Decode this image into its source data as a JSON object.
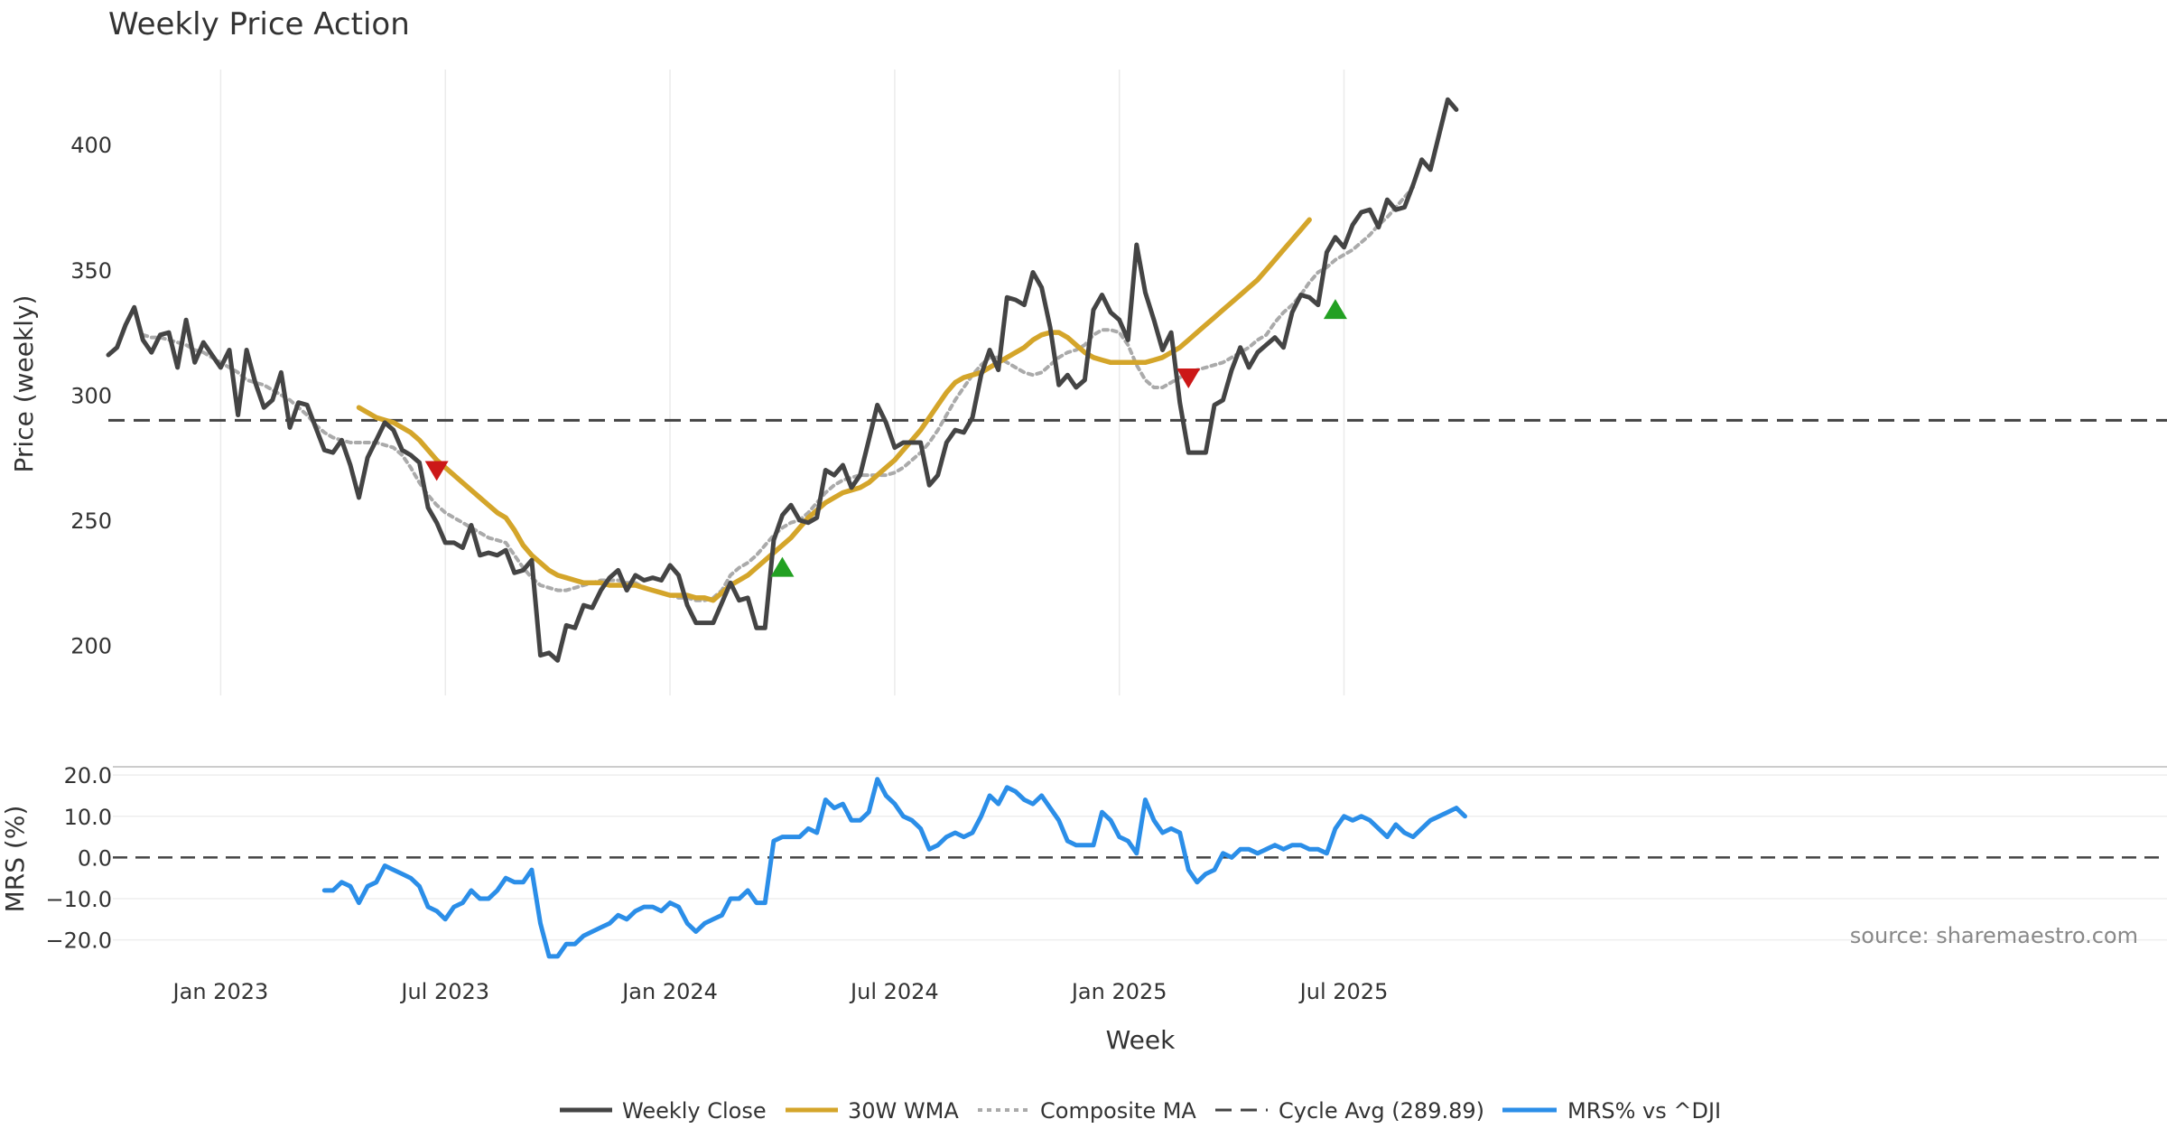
{
  "chart_data": {
    "type": "line",
    "title": "Weekly Price Action",
    "xlabel": "Week",
    "price_panel": {
      "ylabel": "Price (weekly)",
      "ylim": [
        180,
        430
      ],
      "yticks": [
        200,
        250,
        300,
        350,
        400
      ],
      "cycle_avg": 289.89
    },
    "mrs_panel": {
      "ylabel": "MRS (%)",
      "ylim": [
        -26,
        22
      ],
      "yticks": [
        20,
        10,
        0,
        -10,
        -20
      ],
      "ytick_labels": [
        "20.0",
        "10.0",
        "0.0",
        "−10.0",
        "−20.0"
      ]
    },
    "x_ticks": [
      "Jan 2023",
      "Jul 2023",
      "Jan 2024",
      "Jul 2024",
      "Jan 2025",
      "Jul 2025"
    ],
    "x_tick_weeks": [
      13,
      39,
      65,
      91,
      117,
      143
    ],
    "series": [
      {
        "name": "Weekly Close",
        "color": "#444444",
        "start_week": 0,
        "values": [
          316,
          319,
          328,
          335,
          322,
          317,
          324,
          325,
          311,
          330,
          313,
          321,
          316,
          311,
          318,
          292,
          318,
          305,
          295,
          298,
          309,
          287,
          297,
          296,
          287,
          278,
          277,
          282,
          272,
          259,
          275,
          282,
          289,
          286,
          278,
          276,
          273,
          255,
          249,
          241,
          241,
          239,
          248,
          236,
          237,
          236,
          238,
          229,
          230,
          234,
          196,
          197,
          194,
          208,
          207,
          216,
          215,
          222,
          227,
          230,
          222,
          228,
          226,
          227,
          226,
          232,
          228,
          216,
          209,
          209,
          209,
          217,
          225,
          218,
          219,
          207,
          207,
          242,
          252,
          256,
          250,
          249,
          251,
          270,
          268,
          272,
          263,
          268,
          282,
          296,
          289,
          279,
          281,
          281,
          281,
          264,
          268,
          281,
          286,
          285,
          291,
          308,
          318,
          310,
          339,
          338,
          336,
          349,
          343,
          327,
          304,
          308,
          303,
          306,
          334,
          340,
          333,
          330,
          322,
          360,
          341,
          330,
          318,
          325,
          297,
          277,
          277,
          277,
          296,
          298,
          310,
          319,
          311,
          317,
          320,
          323,
          319,
          333,
          340,
          339,
          336,
          357,
          363,
          359,
          368,
          373,
          374,
          367,
          378,
          374,
          375,
          384,
          394,
          390,
          404,
          418,
          414
        ]
      },
      {
        "name": "30W WMA",
        "color": "#d4a52a",
        "start_week": 29,
        "values": [
          295,
          293,
          291,
          290,
          289,
          287,
          285,
          282,
          278,
          274,
          271,
          268,
          265,
          262,
          259,
          256,
          253,
          251,
          246,
          240,
          236,
          233,
          230,
          228,
          227,
          226,
          225,
          225,
          225,
          224,
          224,
          224,
          224,
          223,
          222,
          221,
          220,
          220,
          220,
          219,
          219,
          218,
          221,
          224,
          226,
          228,
          231,
          234,
          237,
          240,
          243,
          247,
          251,
          254,
          257,
          259,
          261,
          262,
          263,
          265,
          268,
          271,
          274,
          278,
          282,
          286,
          291,
          296,
          301,
          305,
          307,
          308,
          309,
          311,
          313,
          315,
          317,
          319,
          322,
          324,
          325,
          325,
          323,
          320,
          317,
          315,
          314,
          313,
          313,
          313,
          313,
          313,
          314,
          315,
          317,
          319,
          322,
          325,
          328,
          331,
          334,
          337,
          340,
          343,
          346,
          350,
          354,
          358,
          362,
          366,
          370
        ]
      },
      {
        "name": "Composite MA",
        "color": "#aaaaaa",
        "start_week": 4,
        "values": [
          324,
          323,
          323,
          322,
          321,
          320,
          318,
          317,
          315,
          313,
          311,
          309,
          306,
          305,
          304,
          302,
          300,
          298,
          295,
          292,
          288,
          285,
          283,
          282,
          281,
          281,
          281,
          281,
          280,
          279,
          276,
          271,
          265,
          260,
          256,
          253,
          251,
          249,
          247,
          245,
          243,
          242,
          241,
          236,
          231,
          227,
          224,
          223,
          222,
          222,
          223,
          224,
          225,
          226,
          226,
          226,
          225,
          225,
          223,
          222,
          221,
          220,
          219,
          219,
          218,
          218,
          219,
          222,
          228,
          231,
          233,
          236,
          240,
          244,
          247,
          249,
          250,
          253,
          257,
          261,
          264,
          266,
          267,
          268,
          268,
          268,
          268,
          269,
          271,
          274,
          277,
          281,
          286,
          292,
          298,
          303,
          308,
          312,
          315,
          315,
          313,
          311,
          309,
          308,
          309,
          312,
          315,
          317,
          318,
          320,
          324,
          326,
          326,
          325,
          320,
          312,
          306,
          303,
          303,
          305,
          307,
          309,
          310,
          311,
          312,
          313,
          315,
          317,
          319,
          322,
          324,
          329,
          333,
          336,
          340,
          345,
          349,
          351,
          354,
          356,
          358,
          361,
          364,
          368,
          371,
          375,
          379,
          383
        ]
      },
      {
        "name": "Cycle Avg (289.89)",
        "color": "#444444",
        "type": "hline",
        "value": 289.89
      },
      {
        "name": "MRS% vs ^DJI",
        "color": "#2b8ee8",
        "start_week": 25,
        "values": [
          -8,
          -8,
          -6,
          -7,
          -11,
          -7,
          -6,
          -2,
          -3,
          -4,
          -5,
          -7,
          -12,
          -13,
          -15,
          -12,
          -11,
          -8,
          -10,
          -10,
          -8,
          -5,
          -6,
          -6,
          -3,
          -16,
          -24,
          -24,
          -21,
          -21,
          -19,
          -18,
          -17,
          -16,
          -14,
          -15,
          -13,
          -12,
          -12,
          -13,
          -11,
          -12,
          -16,
          -18,
          -16,
          -15,
          -14,
          -10,
          -10,
          -8,
          -11,
          -11,
          4,
          5,
          5,
          5,
          7,
          6,
          14,
          12,
          13,
          9,
          9,
          11,
          19,
          15,
          13,
          10,
          9,
          7,
          2,
          3,
          5,
          6,
          5,
          6,
          10,
          15,
          13,
          17,
          16,
          14,
          13,
          15,
          12,
          9,
          4,
          3,
          3,
          3,
          11,
          9,
          5,
          4,
          1,
          14,
          9,
          6,
          7,
          6,
          -3,
          -6,
          -4,
          -3,
          1,
          0,
          2,
          2,
          1,
          2,
          3,
          2,
          3,
          3,
          2,
          2,
          1,
          7,
          10,
          9,
          10,
          9,
          7,
          5,
          8,
          6,
          5,
          7,
          9,
          10,
          11,
          12,
          10
        ]
      }
    ],
    "markers": [
      {
        "type": "sell",
        "color": "#cc1818",
        "week": 38,
        "price": 270
      },
      {
        "type": "buy",
        "color": "#22a022",
        "week": 78,
        "price": 231
      },
      {
        "type": "sell",
        "color": "#cc1818",
        "week": 125,
        "price": 307
      },
      {
        "type": "buy",
        "color": "#22a022",
        "week": 142,
        "price": 334
      }
    ],
    "legend": {
      "position": "bottom-center",
      "entries": [
        "Weekly Close",
        "30W WMA",
        "Composite MA",
        "Cycle Avg (289.89)",
        "MRS% vs ^DJI"
      ]
    },
    "source_text": "source: sharemaestro.com"
  }
}
